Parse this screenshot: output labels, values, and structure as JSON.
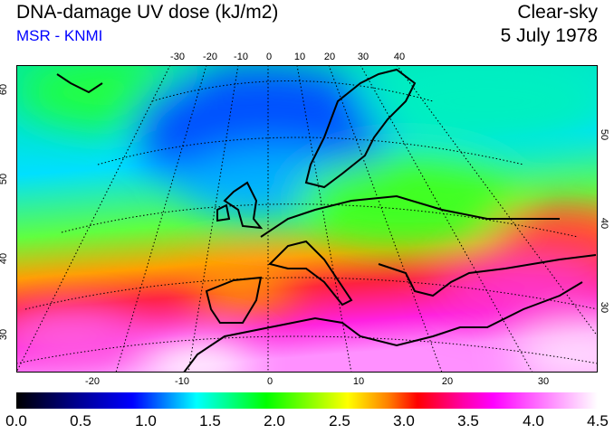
{
  "header": {
    "title": "DNA-damage UV dose (kJ/m2)",
    "source": "MSR - KNMI",
    "condition": "Clear-sky",
    "date": "5 July 1978"
  },
  "map": {
    "top_lon_labels": [
      "-30",
      "-20",
      "-10",
      "0",
      "10",
      "20",
      "30",
      "40"
    ],
    "bottom_lon_labels": [
      "-20",
      "-10",
      "0",
      "10",
      "20",
      "30"
    ],
    "left_lat_labels": [
      "30",
      "40",
      "50",
      "60"
    ],
    "right_lat_labels": [
      "30",
      "40",
      "50"
    ]
  },
  "colorbar": {
    "labels": [
      "0.0",
      "0.5",
      "1.0",
      "1.5",
      "2.0",
      "2.5",
      "3.0",
      "3.5",
      "4.0",
      "4.5"
    ],
    "min": 0.0,
    "max": 4.5,
    "unit": "kJ/m2"
  }
}
